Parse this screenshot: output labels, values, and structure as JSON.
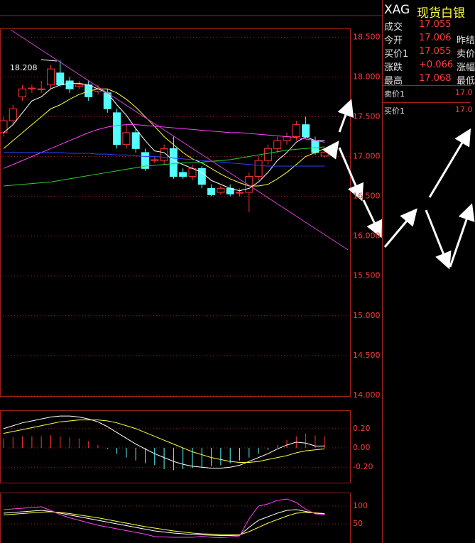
{
  "chart_data": [
    {
      "type": "candlestick",
      "ylim": [
        13.99,
        18.61
      ],
      "yticks": [
        {
          "value": 18.5,
          "label": "18.500"
        },
        {
          "value": 18,
          "label": "18.000"
        },
        {
          "value": 17.5,
          "label": "17.500"
        },
        {
          "value": 17,
          "label": "17.000"
        },
        {
          "value": 16.5,
          "label": "16.500"
        },
        {
          "value": 16,
          "label": "16.000"
        },
        {
          "value": 15.5,
          "label": "15.500"
        },
        {
          "value": 15,
          "label": "15.000"
        },
        {
          "value": 14.5,
          "label": "14.500"
        },
        {
          "value": 14,
          "label": "14.000"
        }
      ],
      "up_color": "#ff3232",
      "down_color": "#54ffff",
      "grid": true,
      "candles": {
        "open": [
          17.3,
          17.45,
          17.75,
          17.85,
          17.84,
          17.9,
          18.05,
          17.95,
          17.88,
          17.9,
          17.82,
          17.8,
          17.55,
          17.15,
          17.3,
          17.05,
          16.95,
          16.95,
          17.1,
          16.8,
          16.75,
          16.85,
          16.6,
          16.55,
          16.6,
          16.54,
          16.55,
          16.75,
          16.95,
          17.1,
          17.2,
          17.25,
          17.4,
          17.2,
          17.006
        ],
        "high": [
          17.5,
          17.65,
          17.9,
          17.9,
          17.95,
          18.15,
          18.208,
          18.0,
          17.95,
          17.95,
          17.9,
          17.85,
          17.6,
          17.4,
          17.35,
          17.1,
          17.0,
          17.15,
          17.25,
          16.85,
          16.9,
          16.88,
          16.65,
          16.63,
          16.65,
          16.6,
          16.8,
          17.0,
          17.15,
          17.25,
          17.3,
          17.45,
          17.5,
          17.25,
          17.068
        ],
        "low": [
          17.25,
          17.4,
          17.7,
          17.8,
          17.8,
          17.85,
          17.88,
          17.8,
          17.85,
          17.7,
          17.78,
          17.55,
          17.1,
          17.1,
          17.05,
          16.82,
          16.92,
          16.9,
          16.72,
          16.72,
          16.7,
          16.6,
          16.5,
          16.52,
          16.5,
          16.5,
          16.3,
          16.7,
          16.9,
          17.05,
          17.15,
          17.2,
          17.22,
          17.02,
          16.99
        ],
        "close": [
          17.45,
          17.6,
          17.85,
          17.86,
          17.85,
          18.1,
          17.9,
          17.85,
          17.9,
          17.75,
          17.85,
          17.6,
          17.15,
          17.3,
          17.1,
          16.85,
          16.96,
          17.1,
          16.75,
          16.75,
          16.85,
          16.65,
          16.52,
          16.6,
          16.53,
          16.55,
          16.75,
          16.95,
          17.1,
          17.2,
          17.25,
          17.4,
          17.25,
          17.05,
          17.055
        ]
      },
      "series": [
        {
          "color": "#ffffff",
          "values": [
            17.3,
            17.4,
            17.55,
            17.7,
            17.75,
            17.85,
            17.9,
            17.92,
            17.92,
            17.9,
            17.85,
            17.8,
            17.65,
            17.52,
            17.35,
            17.2,
            17.07,
            17.05,
            16.95,
            16.9,
            16.85,
            16.8,
            16.7,
            16.65,
            16.6,
            16.57,
            16.6,
            16.68,
            16.8,
            16.95,
            17.05,
            17.18,
            17.25,
            17.2,
            17.2
          ]
        },
        {
          "color": "#ffff40",
          "values": [
            17.1,
            17.2,
            17.3,
            17.4,
            17.5,
            17.6,
            17.65,
            17.72,
            17.78,
            17.82,
            17.85,
            17.85,
            17.8,
            17.72,
            17.62,
            17.5,
            17.38,
            17.25,
            17.15,
            17.05,
            16.97,
            16.92,
            16.85,
            16.78,
            16.72,
            16.67,
            16.63,
            16.63,
            16.65,
            16.72,
            16.8,
            16.9,
            17.0,
            17.05,
            17.1
          ]
        },
        {
          "color": "#ff40ff",
          "values": [
            16.85,
            16.9,
            16.95,
            17.0,
            17.05,
            17.1,
            17.15,
            17.2,
            17.25,
            17.3,
            17.34,
            17.37,
            17.39,
            17.4,
            17.4,
            17.39,
            17.38,
            17.37,
            17.36,
            17.35,
            17.34,
            17.33,
            17.32,
            17.31,
            17.3,
            17.3,
            17.29,
            17.28,
            17.27,
            17.26,
            17.25,
            17.24,
            17.22,
            17.2,
            17.18
          ]
        },
        {
          "color": "#30d030",
          "values": [
            16.63,
            16.64,
            16.65,
            16.66,
            16.67,
            16.68,
            16.7,
            16.72,
            16.74,
            16.76,
            16.78,
            16.8,
            16.82,
            16.84,
            16.86,
            16.88,
            16.89,
            16.9,
            16.91,
            16.92,
            16.92,
            16.93,
            16.94,
            16.95,
            16.96,
            16.98,
            17.0,
            17.02,
            17.04,
            17.06,
            17.08,
            17.09,
            17.1,
            17.11,
            17.12
          ]
        },
        {
          "color": "#3040ff",
          "values": [
            17.05,
            17.05,
            17.05,
            17.05,
            17.05,
            17.05,
            17.05,
            17.04,
            17.04,
            17.04,
            17.03,
            17.03,
            17.02,
            17.02,
            17.01,
            17.0,
            17.0,
            16.99,
            16.98,
            16.97,
            16.96,
            16.95,
            16.94,
            16.93,
            16.92,
            16.91,
            16.9,
            16.89,
            16.88,
            16.88,
            16.88,
            16.88,
            16.88,
            16.88,
            16.88
          ]
        }
      ]
    },
    {
      "type": "bar",
      "ylim": [
        -0.36,
        0.39
      ],
      "yticks": [
        {
          "value": 0.2,
          "label": "0.20"
        },
        {
          "value": 0,
          "label": "0.00"
        },
        {
          "value": -0.2,
          "label": "-0.20"
        }
      ],
      "grid": true,
      "series": [
        {
          "mark": "bar",
          "color": "#ff3232",
          "negative_color": "#54ffff",
          "values": [
            0.1,
            0.11,
            0.12,
            0.12,
            0.12,
            0.13,
            0.12,
            0.11,
            0.1,
            0.07,
            0.03,
            -0.01,
            -0.06,
            -0.1,
            -0.13,
            -0.16,
            -0.18,
            -0.22,
            -0.23,
            -0.22,
            -0.21,
            -0.2,
            -0.19,
            -0.18,
            -0.16,
            -0.13,
            -0.1,
            -0.06,
            -0.02,
            0.03,
            0.08,
            0.12,
            0.15,
            0.13,
            0.12
          ]
        },
        {
          "mark": "line",
          "color": "#ffffff",
          "values": [
            0.2,
            0.23,
            0.26,
            0.28,
            0.3,
            0.32,
            0.33,
            0.33,
            0.32,
            0.3,
            0.27,
            0.22,
            0.16,
            0.1,
            0.04,
            -0.01,
            -0.06,
            -0.1,
            -0.14,
            -0.17,
            -0.19,
            -0.2,
            -0.21,
            -0.21,
            -0.2,
            -0.18,
            -0.14,
            -0.1,
            -0.06,
            -0.01,
            0.03,
            0.06,
            0.05,
            0.02,
            0.02
          ]
        },
        {
          "mark": "line",
          "color": "#ffff40",
          "values": [
            0.15,
            0.17,
            0.19,
            0.21,
            0.23,
            0.25,
            0.27,
            0.28,
            0.29,
            0.29,
            0.29,
            0.28,
            0.26,
            0.23,
            0.2,
            0.16,
            0.12,
            0.08,
            0.04,
            0.0,
            -0.04,
            -0.07,
            -0.1,
            -0.12,
            -0.14,
            -0.15,
            -0.15,
            -0.14,
            -0.12,
            -0.1,
            -0.08,
            -0.05,
            -0.03,
            -0.02,
            -0.01
          ]
        }
      ]
    },
    {
      "type": "line",
      "ylim": [
        -4,
        138
      ],
      "yticks": [
        100,
        50
      ],
      "grid": true,
      "series": [
        {
          "color": "#ffffff",
          "values": [
            80,
            82,
            84,
            86,
            88,
            85,
            80,
            75,
            70,
            65,
            60,
            55,
            50,
            45,
            40,
            35,
            30,
            27,
            24,
            22,
            20,
            19,
            18,
            17,
            17,
            18,
            40,
            60,
            70,
            80,
            88,
            90,
            85,
            80,
            78
          ]
        },
        {
          "color": "#ffff40",
          "values": [
            75,
            77,
            79,
            81,
            83,
            84,
            82,
            79,
            75,
            71,
            67,
            62,
            57,
            52,
            47,
            42,
            38,
            34,
            30,
            27,
            24,
            22,
            21,
            20,
            19,
            19,
            28,
            40,
            52,
            62,
            72,
            80,
            82,
            81,
            79
          ]
        },
        {
          "color": "#ff40ff",
          "values": [
            90,
            92,
            94,
            96,
            98,
            88,
            76,
            67,
            60,
            53,
            46,
            41,
            36,
            31,
            26,
            21,
            14,
            13,
            12,
            12,
            12,
            15,
            12,
            11,
            13,
            16,
            64,
            100,
            106,
            116,
            120,
            110,
            91,
            78,
            76
          ]
        }
      ]
    }
  ],
  "quote": {
    "symbol": "XAG",
    "name": "现货白银",
    "rows": [
      {
        "label": "成交",
        "value": "17.055"
      },
      {
        "label": "今开",
        "value": "17.006",
        "label2": "昨结"
      },
      {
        "label": "买价1",
        "value": "17.055",
        "label2": "卖价"
      },
      {
        "label": "涨跌",
        "value": "+0.066",
        "label2": "涨幅"
      },
      {
        "label": "最高",
        "value": "17.068",
        "label2": "最低"
      }
    ],
    "ask": {
      "label": "卖价1",
      "value": "17.0"
    },
    "bid": {
      "label": "买价1",
      "value": "17.0"
    }
  }
}
